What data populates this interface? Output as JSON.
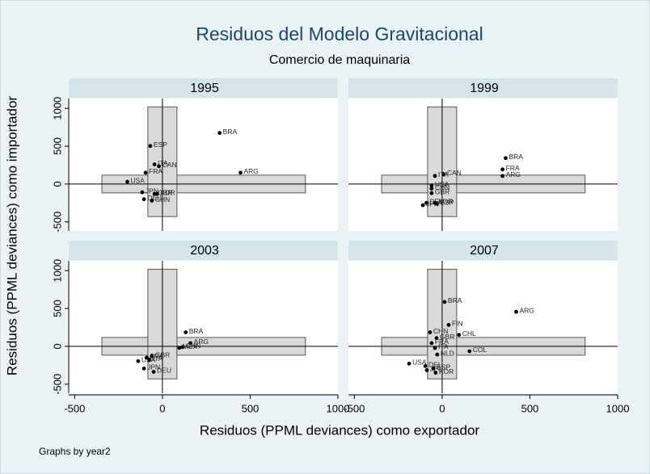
{
  "chart_data": {
    "type": "scatter",
    "title": "Residuos del Modelo Gravitacional",
    "subtitle": "Comercio de maquinaria",
    "x_label": "Residuos (PPML deviances) como exportador",
    "y_label": "Residuos (PPML deviances) como importador",
    "note": "Graphs by year2",
    "xlim": [
      -520,
      1000
    ],
    "ylim": [
      -620,
      1130
    ],
    "xticks": [
      -500,
      0,
      500,
      1000
    ],
    "yticks": [
      -500,
      0,
      500,
      1000
    ],
    "box": {
      "x": [
        -345,
        815
      ],
      "y": [
        -430,
        1020
      ]
    },
    "reference_lines": {
      "x": 0,
      "y": 0
    },
    "color": "#000000",
    "facets": [
      {
        "title": "1995",
        "x": [
          326,
          445,
          -69,
          -45,
          -20,
          -96,
          -200,
          -115,
          -105,
          -45,
          -30,
          -60
        ],
        "y": [
          675,
          150,
          503,
          260,
          235,
          150,
          30,
          -110,
          -200,
          -130,
          -130,
          -220
        ],
        "labels": [
          "BRA",
          "ARG",
          "ESP",
          "ITA",
          "CAN",
          "FRA",
          "USA",
          "JPN",
          "DEU",
          "GBR",
          "KOR",
          "CHN"
        ]
      },
      {
        "title": "1999",
        "x": [
          362,
          344,
          344,
          9,
          -41,
          -60,
          -60,
          -60,
          -90,
          -110,
          -40,
          -30
        ],
        "y": [
          343,
          193,
          107,
          128,
          107,
          -20,
          -60,
          -120,
          -250,
          -280,
          -250,
          -260
        ],
        "labels": [
          "BRA",
          "FRA",
          "ARG",
          "CAN",
          "ITA",
          "USA",
          "CHN",
          "GBR",
          "DEU",
          "JPN",
          "KOR",
          "ESP"
        ]
      },
      {
        "title": "2003",
        "x": [
          133,
          160,
          115,
          96,
          -138,
          -105,
          -50,
          -60,
          -90,
          -75
        ],
        "y": [
          185,
          43,
          -10,
          -20,
          -196,
          -293,
          -337,
          -130,
          -150,
          -180
        ],
        "labels": [
          "BRA",
          "ARG",
          "CHN",
          "MEX",
          "USA",
          "JPN",
          "DEU",
          "GBR",
          "FRA",
          "ITA"
        ]
      },
      {
        "title": "2007",
        "x": [
          14,
          422,
          37,
          96,
          156,
          -69,
          -32,
          -60,
          -41,
          -28,
          -188,
          -96,
          -87,
          -37,
          -50
        ],
        "y": [
          587,
          457,
          283,
          152,
          -65,
          185,
          109,
          43,
          -22,
          -109,
          -228,
          -261,
          -315,
          -348,
          -293
        ],
        "labels": [
          "BRA",
          "ARG",
          "FIN",
          "CHL",
          "COL",
          "CHN",
          "GBR",
          "FRA",
          "ITA",
          "NLD",
          "USA",
          "DEU",
          "JPN",
          "KOR",
          "ESP"
        ]
      }
    ]
  }
}
